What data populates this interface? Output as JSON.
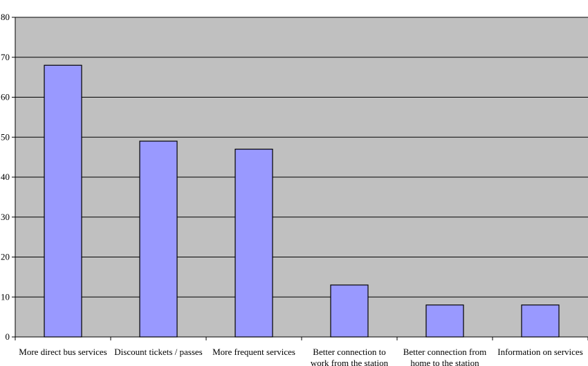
{
  "chart_data": {
    "type": "bar",
    "title": "",
    "xlabel": "",
    "ylabel": "",
    "categories": [
      [
        "More direct bus services"
      ],
      [
        "Discount tickets / passes"
      ],
      [
        "More frequent services"
      ],
      [
        "Better connection to",
        "work from the station"
      ],
      [
        "Better connection from",
        "home to the station"
      ],
      [
        "Information on services"
      ]
    ],
    "values": [
      68,
      49,
      47,
      13,
      8,
      8
    ],
    "ylim": [
      0,
      80
    ],
    "yticks": [
      0,
      10,
      20,
      30,
      40,
      50,
      60,
      70,
      80
    ],
    "ytick_labels": [
      "0",
      "10",
      "20",
      "30",
      "40",
      "50",
      "60",
      "70",
      "80"
    ],
    "grid": true,
    "legend": "none",
    "colors": {
      "bar_fill": "#9999ff",
      "bar_stroke": "#000000",
      "plot_background": "#c0c0c0",
      "gridline": "#000000"
    }
  }
}
